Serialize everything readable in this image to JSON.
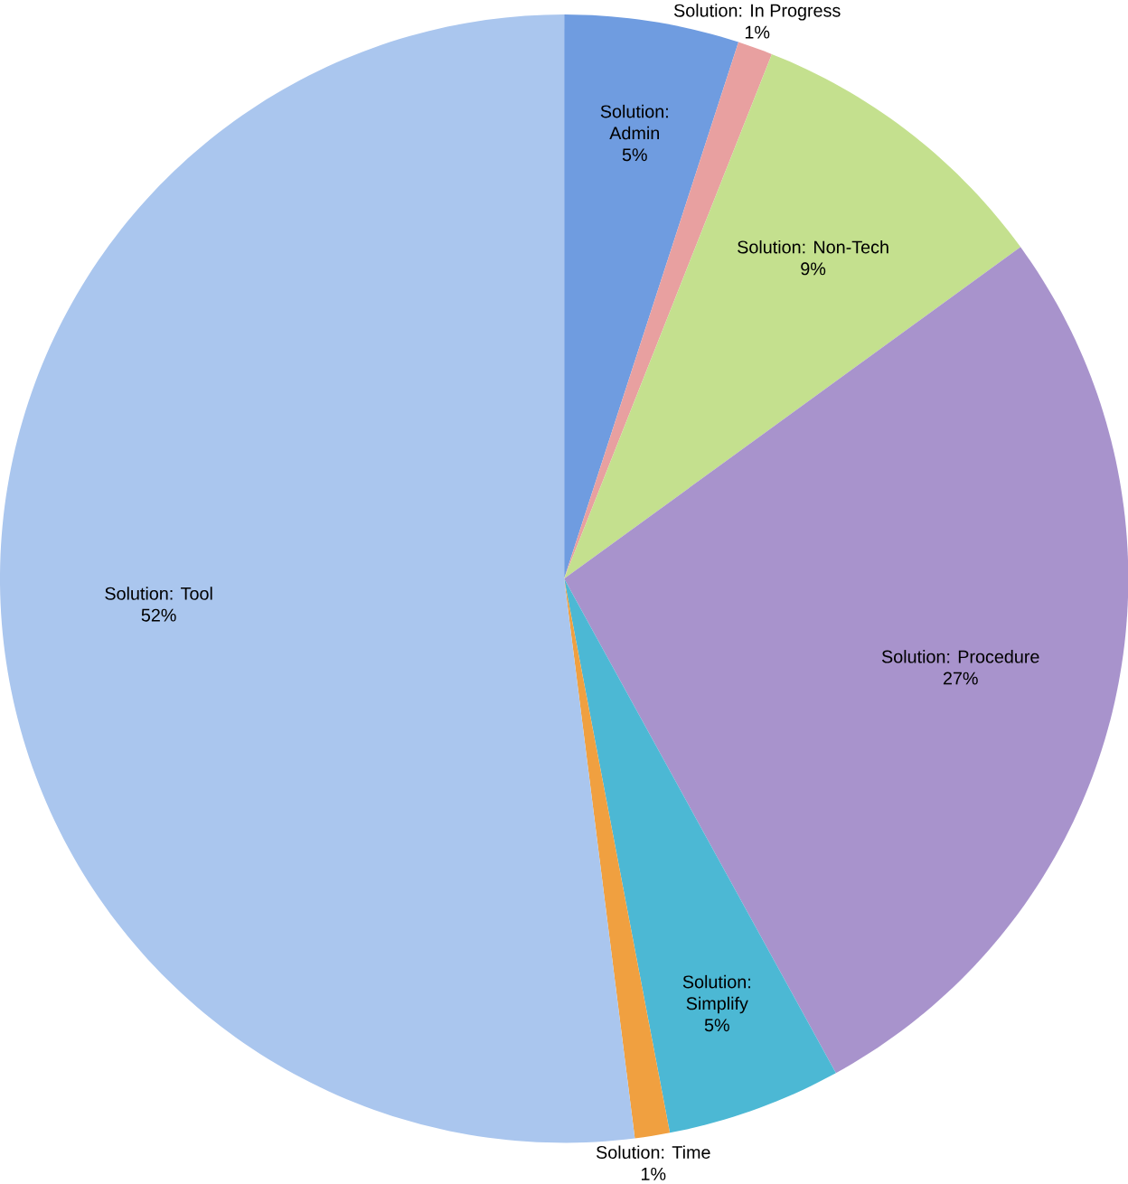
{
  "chart_data": {
    "type": "pie",
    "categories": [
      "Solution: Admin",
      "Solution: In Progress",
      "Solution: Non-Tech",
      "Solution: Procedure",
      "Solution: Simplify",
      "Solution: Time",
      "Solution: Tool"
    ],
    "values": [
      5,
      1,
      9,
      27,
      5,
      1,
      52
    ],
    "value_labels": [
      "5%",
      "1%",
      "9%",
      "27%",
      "5%",
      "1%",
      "52%"
    ],
    "colors": [
      "#6f9ce0",
      "#e8a0a0",
      "#c4e08e",
      "#a893cc",
      "#4cb8d4",
      "#f0a040",
      "#aac6ee"
    ]
  }
}
